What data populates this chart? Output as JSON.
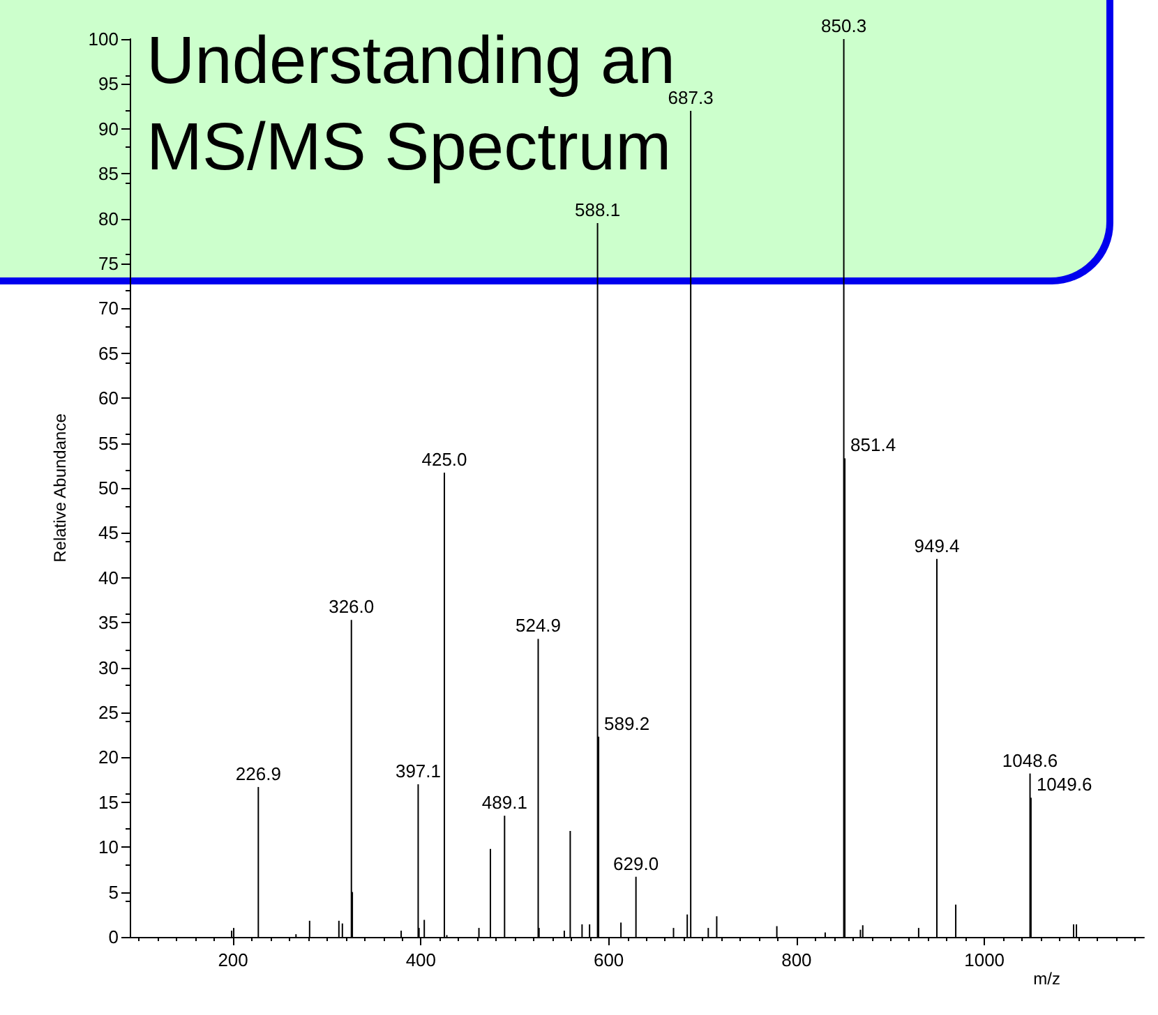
{
  "chart_data": {
    "type": "bar",
    "title": "Understanding an\nMS/MS Spectrum",
    "xlabel": "m/z",
    "ylabel": "Relative Abundance",
    "x": [
      198.5,
      200.7,
      226.9,
      267,
      281.5,
      312.7,
      316.4,
      326.0,
      327.0,
      379,
      397.1,
      398,
      403.6,
      425.0,
      427.6,
      461.8,
      474,
      489.1,
      524.9,
      525.8,
      552.7,
      559,
      571.6,
      579.6,
      588.1,
      589.2,
      613,
      629.0,
      669,
      683.6,
      687.3,
      706,
      715,
      779,
      830.5,
      850.3,
      851.4,
      868,
      870.5,
      930,
      949.4,
      969.5,
      1048.6,
      1049.6,
      1095,
      1098
    ],
    "values": [
      0.7,
      1.0,
      16.7,
      0.3,
      1.8,
      1.8,
      1.5,
      35.3,
      5.0,
      0.7,
      17,
      1.0,
      1.9,
      51.7,
      0.2,
      1.0,
      9.8,
      13.5,
      33.2,
      1.0,
      0.7,
      11.8,
      1.4,
      1.4,
      79.5,
      22.3,
      1.6,
      6.7,
      1.0,
      2.5,
      92,
      1.0,
      2.3,
      1.2,
      0.5,
      100,
      53.3,
      0.8,
      1.3,
      1.0,
      42.1,
      3.6,
      18.2,
      15.5,
      1.4,
      1.4
    ],
    "annotations": [
      {
        "text": "226.9",
        "x": 226.9,
        "y": 16.7
      },
      {
        "text": "326.0",
        "x": 326.0,
        "y": 35.3
      },
      {
        "text": "397.1",
        "x": 397.1,
        "y": 17
      },
      {
        "text": "425.0",
        "x": 425.0,
        "y": 51.7
      },
      {
        "text": "489.1",
        "x": 489.1,
        "y": 13.5
      },
      {
        "text": "524.9",
        "x": 524.9,
        "y": 33.2
      },
      {
        "text": "588.1",
        "x": 588.1,
        "y": 79.5
      },
      {
        "text": "589.2",
        "x": 589.2,
        "y": 22.3
      },
      {
        "text": "629.0",
        "x": 629.0,
        "y": 6.7
      },
      {
        "text": "687.3",
        "x": 687.3,
        "y": 92
      },
      {
        "text": "850.3",
        "x": 850.3,
        "y": 100
      },
      {
        "text": "851.4",
        "x": 851.4,
        "y": 53.3
      },
      {
        "text": "949.4",
        "x": 949.4,
        "y": 42.1
      },
      {
        "text": "1048.6",
        "x": 1048.6,
        "y": 18.2
      },
      {
        "text": "1049.6",
        "x": 1049.6,
        "y": 15.5
      }
    ],
    "color": "#000000",
    "xlim": [
      90,
      1170
    ],
    "xticks": [
      200,
      400,
      600,
      800,
      {
        "value": 1000,
        "label": "1000"
      }
    ],
    "ylim": [
      0,
      100
    ],
    "yticks": [
      0,
      5,
      10,
      15,
      20,
      25,
      30,
      35,
      40,
      45,
      50,
      55,
      60,
      65,
      70,
      75,
      80,
      85,
      90,
      95,
      100
    ],
    "grid": false
  }
}
